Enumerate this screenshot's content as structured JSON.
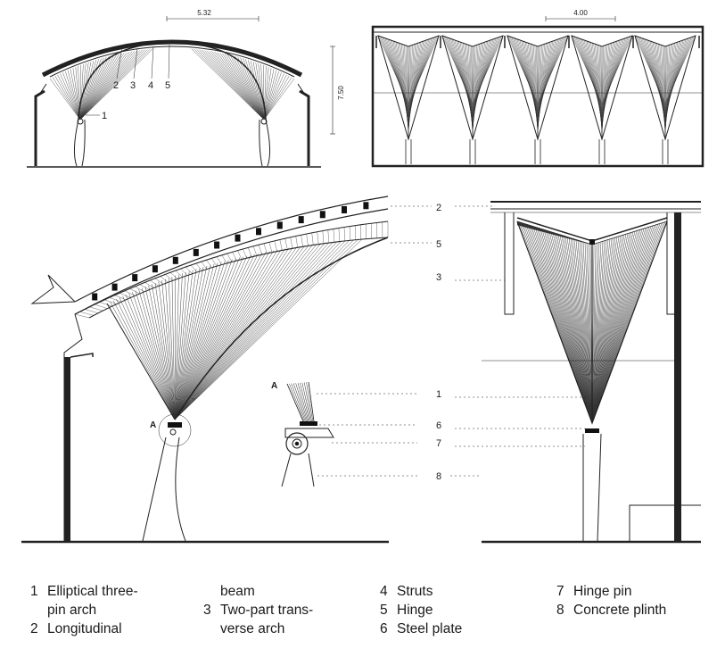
{
  "dimensions": {
    "span": "5.32",
    "height": "7.50",
    "bay": "4.00"
  },
  "callouts": {
    "top_left": [
      "1",
      "2",
      "3",
      "4",
      "5"
    ],
    "large": [
      "2",
      "5",
      "3",
      "1",
      "6",
      "7",
      "8"
    ],
    "detail_marker": "A"
  },
  "legend": [
    {
      "num": "1",
      "text": "Elliptical three-\npin arch"
    },
    {
      "num": "2",
      "text": "Longitudinal\n"
    },
    {
      "num": "",
      "text": "beam"
    },
    {
      "num": "3",
      "text": "Two-part trans-\nverse arch"
    },
    {
      "num": "4",
      "text": "Struts"
    },
    {
      "num": "5",
      "text": "Hinge"
    },
    {
      "num": "6",
      "text": "Steel plate"
    },
    {
      "num": "7",
      "text": "Hinge pin"
    },
    {
      "num": "8",
      "text": "Concrete plinth"
    }
  ]
}
